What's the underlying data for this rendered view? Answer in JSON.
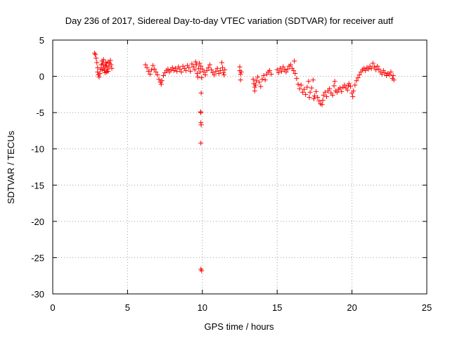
{
  "chart_data": {
    "type": "scatter",
    "title": "Day 236 of 2017, Sidereal Day-to-day VTEC variation (SDTVAR) for receiver autf",
    "xlabel": "GPS time / hours",
    "ylabel": "SDTVAR / TECUs",
    "xlim": [
      0,
      25
    ],
    "ylim": [
      -30,
      5
    ],
    "x_ticks": [
      0,
      5,
      10,
      15,
      20,
      25
    ],
    "y_ticks": [
      5,
      0,
      -5,
      -10,
      -15,
      -20,
      -25,
      -30
    ],
    "x_tick_labels": [
      "0",
      "5",
      "10",
      "15",
      "20",
      "25"
    ],
    "y_tick_labels": [
      "5",
      "0",
      "-5",
      "-10",
      "-15",
      "-20",
      "-25",
      "-30"
    ],
    "grid": true,
    "marker": "+",
    "marker_color": "#ff0000",
    "series": [
      {
        "name": "SDTVAR",
        "points": [
          [
            2.8,
            3.2
          ],
          [
            2.85,
            3.0
          ],
          [
            2.9,
            2.5
          ],
          [
            2.95,
            1.9
          ],
          [
            3.0,
            1.2
          ],
          [
            3.0,
            0.6
          ],
          [
            3.05,
            0.2
          ],
          [
            3.1,
            -0.1
          ],
          [
            3.15,
            0.4
          ],
          [
            3.2,
            1.0
          ],
          [
            3.25,
            1.6
          ],
          [
            3.3,
            2.1
          ],
          [
            3.35,
            1.7
          ],
          [
            3.4,
            1.2
          ],
          [
            3.45,
            0.8
          ],
          [
            3.5,
            1.4
          ],
          [
            3.55,
            1.9
          ],
          [
            3.6,
            1.5
          ],
          [
            3.65,
            1.0
          ],
          [
            3.7,
            0.7
          ],
          [
            3.75,
            1.3
          ],
          [
            3.8,
            1.8
          ],
          [
            3.85,
            2.2
          ],
          [
            3.9,
            1.6
          ],
          [
            3.95,
            1.1
          ],
          [
            3.3,
            0.9
          ],
          [
            3.4,
            2.3
          ],
          [
            3.6,
            0.6
          ],
          [
            3.7,
            2.0
          ],
          [
            3.5,
            0.5
          ],
          [
            6.2,
            1.6
          ],
          [
            6.3,
            1.2
          ],
          [
            6.4,
            0.7
          ],
          [
            6.5,
            0.3
          ],
          [
            6.6,
            0.9
          ],
          [
            6.7,
            1.5
          ],
          [
            6.8,
            1.0
          ],
          [
            6.9,
            0.6
          ],
          [
            7.0,
            0.2
          ],
          [
            7.1,
            -0.4
          ],
          [
            7.2,
            -0.8
          ],
          [
            7.25,
            -1.1
          ],
          [
            7.3,
            -0.6
          ],
          [
            7.4,
            0.1
          ],
          [
            7.5,
            0.5
          ],
          [
            7.6,
            0.8
          ],
          [
            7.7,
            1.0
          ],
          [
            7.8,
            0.6
          ],
          [
            7.9,
            0.9
          ],
          [
            8.0,
            1.2
          ],
          [
            8.1,
            0.8
          ],
          [
            8.2,
            1.1
          ],
          [
            8.3,
            0.7
          ],
          [
            8.4,
            1.3
          ],
          [
            8.5,
            1.0
          ],
          [
            8.6,
            0.6
          ],
          [
            8.7,
            1.4
          ],
          [
            8.8,
            1.1
          ],
          [
            8.9,
            0.8
          ],
          [
            9.0,
            1.5
          ],
          [
            9.1,
            1.2
          ],
          [
            9.2,
            0.7
          ],
          [
            9.3,
            1.7
          ],
          [
            9.4,
            1.3
          ],
          [
            9.5,
            0.9
          ],
          [
            9.55,
            2.0
          ],
          [
            9.6,
            1.6
          ],
          [
            9.65,
            0.4
          ],
          [
            9.7,
            -0.1
          ],
          [
            9.75,
            1.1
          ],
          [
            9.8,
            1.8
          ],
          [
            9.85,
            0.6
          ],
          [
            9.9,
            1.4
          ],
          [
            9.95,
            -0.2
          ],
          [
            9.92,
            -2.3
          ],
          [
            9.88,
            -4.9
          ],
          [
            9.9,
            -5.0
          ],
          [
            9.9,
            -6.4
          ],
          [
            9.92,
            -6.7
          ],
          [
            9.9,
            -9.2
          ],
          [
            9.9,
            -26.6
          ],
          [
            9.95,
            -26.8
          ],
          [
            10.0,
            1.0
          ],
          [
            10.1,
            0.6
          ],
          [
            10.2,
            0.2
          ],
          [
            10.3,
            0.8
          ],
          [
            10.4,
            1.2
          ],
          [
            10.5,
            1.6
          ],
          [
            10.6,
            0.9
          ],
          [
            10.7,
            0.5
          ],
          [
            10.8,
            0.2
          ],
          [
            10.9,
            0.7
          ],
          [
            11.0,
            1.1
          ],
          [
            11.1,
            0.4
          ],
          [
            11.2,
            0.8
          ],
          [
            11.3,
            1.9
          ],
          [
            11.35,
            1.2
          ],
          [
            11.4,
            0.5
          ],
          [
            11.45,
            0.2
          ],
          [
            11.5,
            0.9
          ],
          [
            12.5,
            1.3
          ],
          [
            12.5,
            0.8
          ],
          [
            12.55,
            0.3
          ],
          [
            12.55,
            -0.5
          ],
          [
            12.6,
            0.6
          ],
          [
            13.4,
            -0.4
          ],
          [
            13.45,
            -1.0
          ],
          [
            13.5,
            -1.5
          ],
          [
            13.5,
            -2.0
          ],
          [
            13.55,
            -1.2
          ],
          [
            13.6,
            -0.6
          ],
          [
            13.7,
            -0.1
          ],
          [
            13.8,
            -0.8
          ],
          [
            13.9,
            -1.4
          ],
          [
            14.0,
            -0.4
          ],
          [
            14.1,
            0.1
          ],
          [
            14.2,
            -0.5
          ],
          [
            14.3,
            0.3
          ],
          [
            14.4,
            0.6
          ],
          [
            14.5,
            0.8
          ],
          [
            14.6,
            0.3
          ],
          [
            15.0,
            0.9
          ],
          [
            15.1,
            0.5
          ],
          [
            15.2,
            1.1
          ],
          [
            15.3,
            0.7
          ],
          [
            15.4,
            1.3
          ],
          [
            15.5,
            0.9
          ],
          [
            15.6,
            0.6
          ],
          [
            15.7,
            1.0
          ],
          [
            15.8,
            1.4
          ],
          [
            15.9,
            1.6
          ],
          [
            16.0,
            1.1
          ],
          [
            16.1,
            0.8
          ],
          [
            16.15,
            2.1
          ],
          [
            16.2,
            0.4
          ],
          [
            16.3,
            -0.3
          ],
          [
            16.4,
            -1.1
          ],
          [
            16.5,
            -1.7
          ],
          [
            16.6,
            -1.2
          ],
          [
            16.7,
            -2.2
          ],
          [
            16.8,
            -1.8
          ],
          [
            16.9,
            -2.5
          ],
          [
            17.0,
            -1.5
          ],
          [
            17.1,
            -0.7
          ],
          [
            17.15,
            -2.9
          ],
          [
            17.2,
            -2.2
          ],
          [
            17.3,
            -1.6
          ],
          [
            17.4,
            -0.5
          ],
          [
            17.45,
            -3.1
          ],
          [
            17.5,
            -2.7
          ],
          [
            17.6,
            -2.1
          ],
          [
            17.7,
            -2.9
          ],
          [
            17.8,
            -3.4
          ],
          [
            17.9,
            -3.8
          ],
          [
            18.0,
            -3.9
          ],
          [
            18.05,
            -3.3
          ],
          [
            18.1,
            -2.6
          ],
          [
            18.2,
            -2.2
          ],
          [
            18.3,
            -2.8
          ],
          [
            18.4,
            -2.0
          ],
          [
            18.5,
            -1.7
          ],
          [
            18.6,
            -2.3
          ],
          [
            18.7,
            -2.6
          ],
          [
            18.8,
            -1.3
          ],
          [
            18.85,
            -0.7
          ],
          [
            18.9,
            -2.0
          ],
          [
            19.0,
            -2.2
          ],
          [
            19.1,
            -1.8
          ],
          [
            19.2,
            -1.6
          ],
          [
            19.3,
            -2.1
          ],
          [
            19.4,
            -1.5
          ],
          [
            19.5,
            -1.2
          ],
          [
            19.6,
            -1.6
          ],
          [
            19.7,
            -1.9
          ],
          [
            19.75,
            -1.3
          ],
          [
            19.8,
            -1.0
          ],
          [
            19.9,
            -1.4
          ],
          [
            20.0,
            -2.3
          ],
          [
            20.05,
            -2.8
          ],
          [
            20.1,
            -2.0
          ],
          [
            20.2,
            -1.2
          ],
          [
            20.3,
            -0.6
          ],
          [
            20.4,
            -0.2
          ],
          [
            20.5,
            0.2
          ],
          [
            20.6,
            0.6
          ],
          [
            20.7,
            0.9
          ],
          [
            20.8,
            1.1
          ],
          [
            20.9,
            0.8
          ],
          [
            21.0,
            1.2
          ],
          [
            21.1,
            1.0
          ],
          [
            21.2,
            1.4
          ],
          [
            21.3,
            1.1
          ],
          [
            21.4,
            1.8
          ],
          [
            21.5,
            1.3
          ],
          [
            21.6,
            0.9
          ],
          [
            21.7,
            1.4
          ],
          [
            21.8,
            1.0
          ],
          [
            21.9,
            0.6
          ],
          [
            22.0,
            0.3
          ],
          [
            22.1,
            0.8
          ],
          [
            22.2,
            0.5
          ],
          [
            22.3,
            0.1
          ],
          [
            22.4,
            0.4
          ],
          [
            22.5,
            0.2
          ],
          [
            22.6,
            0.6
          ],
          [
            22.7,
            -0.3
          ],
          [
            22.8,
            -0.5
          ],
          [
            22.75,
            0.1
          ]
        ]
      }
    ]
  }
}
